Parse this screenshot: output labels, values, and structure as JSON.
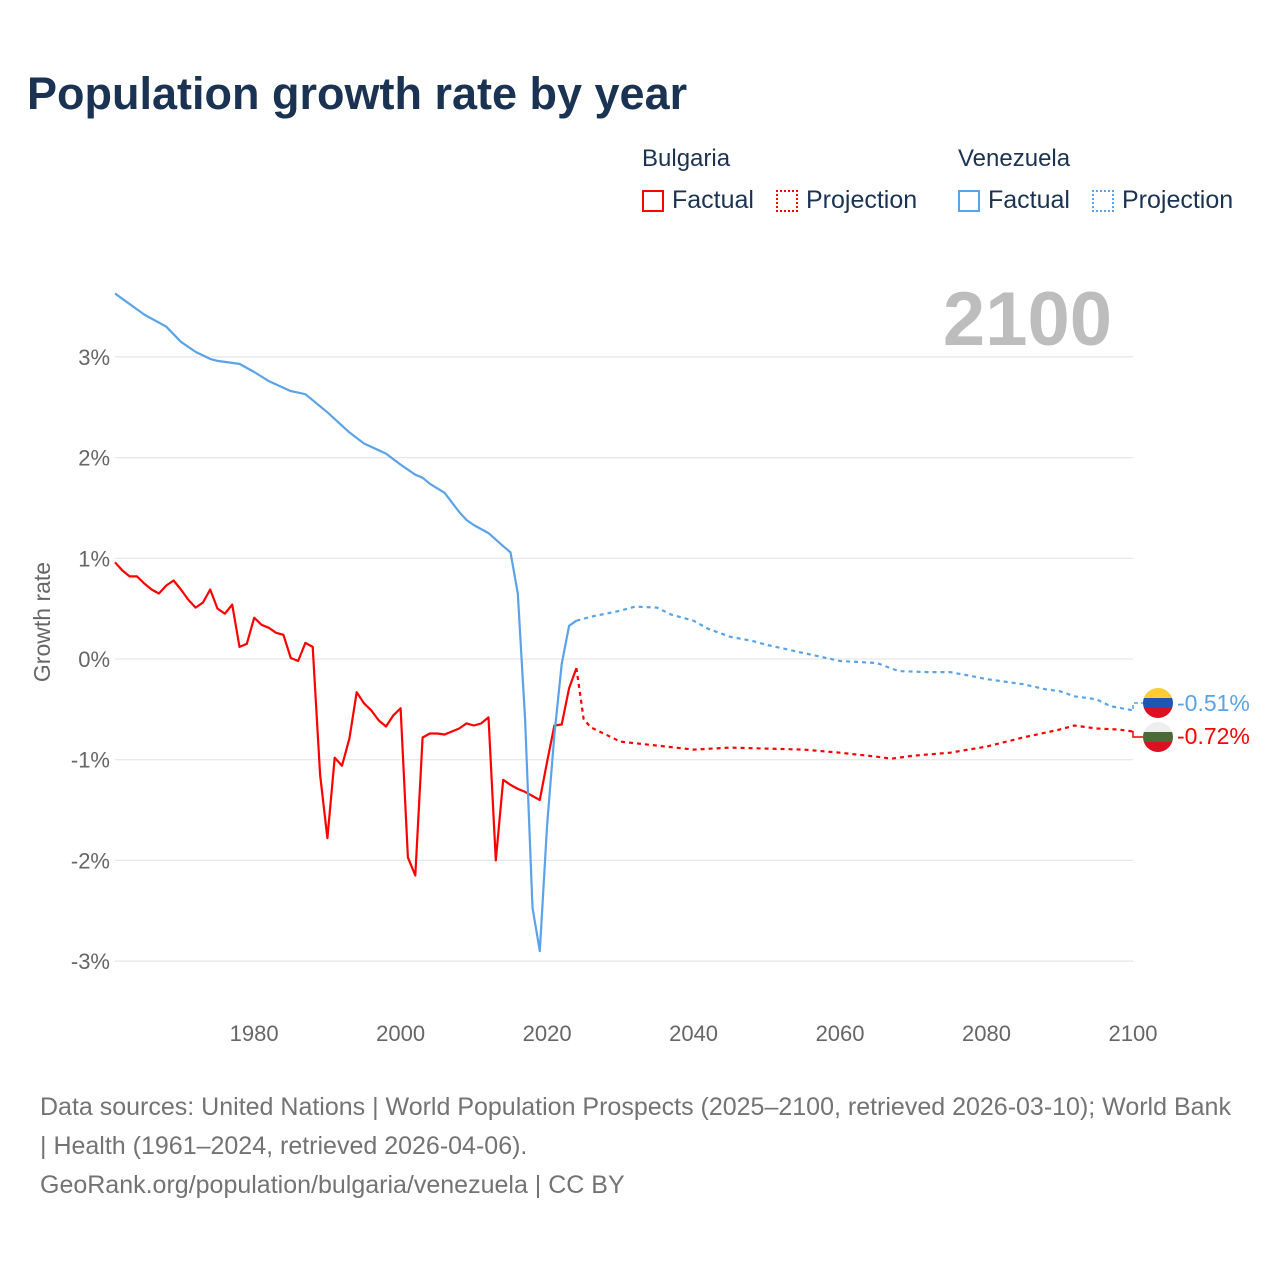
{
  "title": "Population growth rate by year",
  "legend": {
    "groups": [
      {
        "name": "Bulgaria",
        "color": "#ff0000",
        "factual": "Factual",
        "projection": "Projection"
      },
      {
        "name": "Venezuela",
        "color": "#5aa3e8",
        "factual": "Factual",
        "projection": "Projection"
      }
    ]
  },
  "year_label": "2100",
  "end_labels": {
    "venezuela": "-0.51%",
    "bulgaria": "-0.72%"
  },
  "footer": {
    "line1": "Data sources: United Nations | World Population Prospects (2025–2100, retrieved 2026-03-10); World Bank | Health (1961–2024, retrieved 2026-04-06).",
    "line2": "GeoRank.org/population/bulgaria/venezuela | CC BY"
  },
  "chart_data": {
    "type": "line",
    "title": "Population growth rate by year",
    "xlabel": "",
    "ylabel": "Growth rate",
    "xlim": [
      1961,
      2100
    ],
    "ylim": [
      -3.4,
      3.8
    ],
    "xticks": [
      1980,
      2000,
      2020,
      2040,
      2060,
      2080,
      2100
    ],
    "xtick_labels": [
      "1980",
      "2000",
      "2020",
      "2040",
      "2060",
      "2080",
      "2100"
    ],
    "yticks": [
      3,
      2,
      1,
      0,
      -1,
      -2,
      -3
    ],
    "ytick_labels": [
      "3%",
      "2%",
      "1%",
      "0%",
      "-1%",
      "-2%",
      "-3%"
    ],
    "grid": true,
    "legend_position": "top-right",
    "series": [
      {
        "name": "Bulgaria Factual",
        "color": "#ff0000",
        "dashed": false,
        "x": [
          1961,
          1962,
          1963,
          1964,
          1965,
          1966,
          1967,
          1968,
          1969,
          1970,
          1971,
          1972,
          1973,
          1974,
          1975,
          1976,
          1977,
          1978,
          1979,
          1980,
          1981,
          1982,
          1983,
          1984,
          1985,
          1986,
          1987,
          1988,
          1989,
          1990,
          1991,
          1992,
          1993,
          1994,
          1995,
          1996,
          1997,
          1998,
          1999,
          2000,
          2001,
          2002,
          2003,
          2004,
          2005,
          2006,
          2007,
          2008,
          2009,
          2010,
          2011,
          2012,
          2013,
          2014,
          2015,
          2016,
          2017,
          2018,
          2019,
          2020,
          2021,
          2022,
          2023,
          2024
        ],
        "y": [
          0.96,
          0.88,
          0.82,
          0.82,
          0.75,
          0.69,
          0.65,
          0.73,
          0.78,
          0.69,
          0.59,
          0.51,
          0.56,
          0.69,
          0.5,
          0.45,
          0.54,
          0.12,
          0.15,
          0.41,
          0.34,
          0.31,
          0.26,
          0.24,
          0.01,
          -0.02,
          0.16,
          0.12,
          -1.15,
          -1.78,
          -0.98,
          -1.06,
          -0.79,
          -0.33,
          -0.44,
          -0.51,
          -0.61,
          -0.67,
          -0.56,
          -0.49,
          -1.97,
          -2.15,
          -0.78,
          -0.74,
          -0.74,
          -0.75,
          -0.72,
          -0.69,
          -0.64,
          -0.66,
          -0.64,
          -0.58,
          -2.0,
          -1.2,
          -1.25,
          -1.29,
          -1.32,
          -1.36,
          -1.4,
          -1.02,
          -0.66,
          -0.65,
          -0.29,
          -0.09
        ]
      },
      {
        "name": "Bulgaria Projection",
        "color": "#ff0000",
        "dashed": true,
        "x": [
          2024,
          2025,
          2026,
          2028,
          2030,
          2035,
          2040,
          2045,
          2050,
          2055,
          2060,
          2065,
          2067,
          2070,
          2075,
          2080,
          2085,
          2090,
          2092,
          2095,
          2098,
          2100
        ],
        "y": [
          -0.09,
          -0.6,
          -0.68,
          -0.75,
          -0.82,
          -0.86,
          -0.9,
          -0.88,
          -0.89,
          -0.9,
          -0.93,
          -0.97,
          -0.99,
          -0.96,
          -0.93,
          -0.87,
          -0.78,
          -0.7,
          -0.66,
          -0.69,
          -0.7,
          -0.72
        ]
      },
      {
        "name": "Venezuela Factual",
        "color": "#5aa3e8",
        "dashed": false,
        "x": [
          1961,
          1965,
          1968,
          1970,
          1972,
          1974,
          1975,
          1978,
          1980,
          1982,
          1985,
          1987,
          1990,
          1993,
          1995,
          1998,
          2000,
          2002,
          2003,
          2004,
          2006,
          2008,
          2009,
          2010,
          2012,
          2014,
          2015,
          2016,
          2017,
          2018,
          2019,
          2020,
          2021,
          2022,
          2023,
          2024
        ],
        "y": [
          3.63,
          3.42,
          3.3,
          3.15,
          3.05,
          2.98,
          2.96,
          2.93,
          2.85,
          2.76,
          2.66,
          2.63,
          2.45,
          2.25,
          2.14,
          2.04,
          1.93,
          1.83,
          1.8,
          1.74,
          1.65,
          1.46,
          1.38,
          1.33,
          1.25,
          1.12,
          1.06,
          0.65,
          -0.6,
          -2.47,
          -2.9,
          -1.65,
          -0.75,
          -0.05,
          0.33,
          0.38
        ]
      },
      {
        "name": "Venezuela Projection",
        "color": "#5aa3e8",
        "dashed": true,
        "x": [
          2024,
          2026,
          2028,
          2030,
          2032,
          2035,
          2037,
          2040,
          2042,
          2045,
          2048,
          2050,
          2055,
          2060,
          2065,
          2068,
          2072,
          2075,
          2078,
          2080,
          2085,
          2088,
          2090,
          2092,
          2095,
          2097,
          2100
        ],
        "y": [
          0.38,
          0.42,
          0.45,
          0.48,
          0.52,
          0.51,
          0.44,
          0.38,
          0.3,
          0.22,
          0.18,
          0.14,
          0.06,
          -0.02,
          -0.04,
          -0.12,
          -0.13,
          -0.13,
          -0.17,
          -0.2,
          -0.25,
          -0.3,
          -0.32,
          -0.37,
          -0.4,
          -0.47,
          -0.51
        ]
      }
    ]
  }
}
